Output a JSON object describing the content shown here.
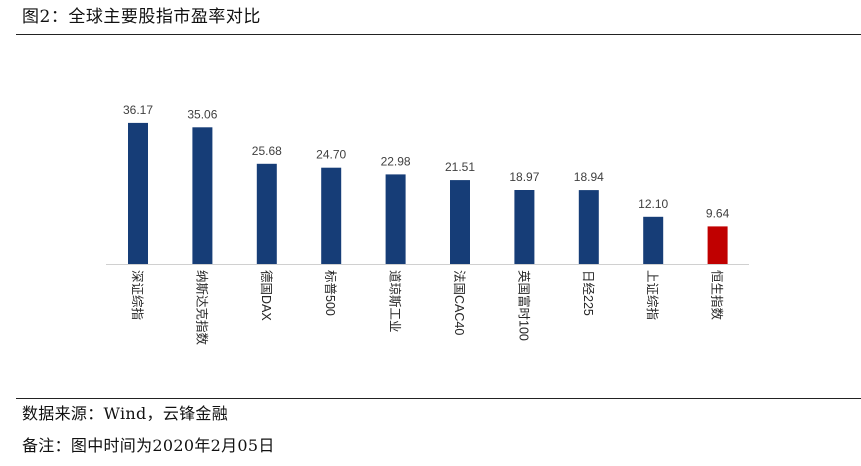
{
  "figure": {
    "title": "图2：全球主要股指市盈率对比"
  },
  "footer": {
    "source": "数据来源：Wind，云锋金融",
    "note": "备注：图中时间为2020年2月05日"
  },
  "colors": {
    "bar_default": "#163d77",
    "bar_highlight": "#c00000",
    "axis": "#d0d0d0"
  },
  "chart_data": {
    "type": "bar",
    "title": "",
    "xlabel": "",
    "ylabel": "",
    "categories": [
      "深证综指",
      "纳斯达克指数",
      "德国DAX",
      "标普500",
      "道琼斯工业",
      "法国CAC40",
      "英国富时100",
      "日经225",
      "上证综指",
      "恒生指数"
    ],
    "values": [
      36.17,
      35.06,
      25.68,
      24.7,
      22.98,
      21.51,
      18.97,
      18.94,
      12.1,
      9.64
    ],
    "data_labels": [
      "36.17",
      "35.06",
      "25.68",
      "24.70",
      "22.98",
      "21.51",
      "18.97",
      "18.94",
      "12.10",
      "9.64"
    ],
    "highlight_index": 9,
    "ylim": [
      0,
      40
    ],
    "grid": false,
    "legend": "none"
  }
}
